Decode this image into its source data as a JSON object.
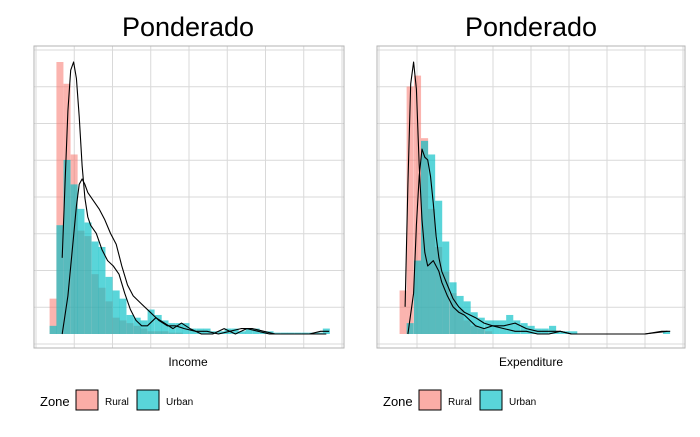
{
  "colors": {
    "rural": "#F8766D",
    "urban": "#00BFC4",
    "grid": "#D9D9D9",
    "frame": "#B3B3B3",
    "curve": "#000000"
  },
  "chart_data": [
    {
      "type": "area",
      "title": "Ponderado",
      "xlabel": "Income",
      "ylabel": "",
      "xlim": [
        0,
        1
      ],
      "ylim": [
        0,
        1
      ],
      "grid": true,
      "legend": {
        "title": "Zone",
        "position": "bottom-left",
        "entries": [
          "Rural",
          "Urban"
        ]
      },
      "series": [
        {
          "name": "Rural",
          "histogram": {
            "bin_width": 0.0247,
            "x": [
              0.018,
              0.042,
              0.067,
              0.092,
              0.116,
              0.141,
              0.166,
              0.19,
              0.215,
              0.24,
              0.264,
              0.289,
              0.314,
              0.338,
              0.363,
              0.388,
              0.412,
              0.437,
              0.462
            ],
            "values": [
              0.13,
              1.0,
              0.92,
              0.66,
              0.38,
              0.36,
              0.22,
              0.17,
              0.12,
              0.06,
              0.05,
              0.04,
              0.03,
              0.02,
              0.01,
              0.01,
              0.01,
              0.005,
              0.005
            ]
          },
          "density": {
            "x": [
              0.05,
              0.06,
              0.07,
              0.08,
              0.09,
              0.1,
              0.11,
              0.12,
              0.13,
              0.14,
              0.15,
              0.17,
              0.19,
              0.21,
              0.23,
              0.25,
              0.27,
              0.29,
              0.31,
              0.33,
              0.35,
              0.38,
              0.41,
              0.44,
              0.47,
              0.5,
              0.54,
              0.58,
              0.62,
              0.66,
              0.7,
              0.74,
              0.78,
              0.82,
              0.86,
              0.9,
              0.94,
              0.98
            ],
            "values": [
              0.28,
              0.55,
              0.82,
              0.97,
              1.0,
              0.94,
              0.8,
              0.62,
              0.5,
              0.43,
              0.4,
              0.37,
              0.31,
              0.27,
              0.25,
              0.22,
              0.15,
              0.09,
              0.05,
              0.03,
              0.03,
              0.06,
              0.04,
              0.02,
              0.04,
              0.02,
              0.0,
              0.0,
              0.02,
              0.0,
              0.02,
              0.01,
              0.0,
              0.0,
              0.0,
              0.0,
              0.0,
              0.0
            ]
          }
        },
        {
          "name": "Urban",
          "histogram": {
            "bin_width": 0.0247,
            "x": [
              0.018,
              0.042,
              0.067,
              0.092,
              0.116,
              0.141,
              0.166,
              0.19,
              0.215,
              0.24,
              0.264,
              0.289,
              0.314,
              0.338,
              0.363,
              0.388,
              0.412,
              0.437,
              0.462,
              0.486,
              0.511,
              0.536,
              0.56,
              0.585,
              0.61,
              0.634,
              0.659,
              0.684,
              0.708,
              0.733,
              0.758,
              0.782,
              0.807,
              0.832,
              0.856,
              0.881,
              0.906,
              0.931,
              0.955,
              0.98
            ],
            "values": [
              0.03,
              0.4,
              0.64,
              0.55,
              0.46,
              0.41,
              0.34,
              0.32,
              0.21,
              0.16,
              0.13,
              0.07,
              0.06,
              0.05,
              0.09,
              0.07,
              0.05,
              0.04,
              0.04,
              0.04,
              0.02,
              0.02,
              0.02,
              0.01,
              0.01,
              0.02,
              0.02,
              0.01,
              0.02,
              0.02,
              0.01,
              0.01,
              0.005,
              0.005,
              0.005,
              0.005,
              0.005,
              0.005,
              0.005,
              0.02
            ]
          },
          "density": {
            "x": [
              0.05,
              0.07,
              0.09,
              0.1,
              0.11,
              0.12,
              0.13,
              0.14,
              0.16,
              0.18,
              0.2,
              0.22,
              0.24,
              0.26,
              0.28,
              0.3,
              0.33,
              0.36,
              0.39,
              0.42,
              0.45,
              0.48,
              0.52,
              0.56,
              0.6,
              0.64,
              0.68,
              0.72,
              0.76,
              0.8,
              0.84,
              0.88,
              0.92,
              0.96,
              0.99
            ],
            "values": [
              0.0,
              0.14,
              0.36,
              0.47,
              0.55,
              0.57,
              0.55,
              0.52,
              0.49,
              0.46,
              0.42,
              0.37,
              0.33,
              0.25,
              0.18,
              0.14,
              0.11,
              0.08,
              0.05,
              0.03,
              0.03,
              0.02,
              0.01,
              0.01,
              0.0,
              0.01,
              0.02,
              0.02,
              0.01,
              0.0,
              0.0,
              0.0,
              0.0,
              0.01,
              0.01
            ]
          }
        }
      ]
    },
    {
      "type": "area",
      "title": "Ponderado",
      "xlabel": "Expenditure",
      "ylabel": "",
      "xlim": [
        0,
        1
      ],
      "ylim": [
        0,
        1
      ],
      "grid": true,
      "legend": {
        "title": "Zone",
        "position": "bottom-left",
        "entries": [
          "Rural",
          "Urban"
        ]
      },
      "series": [
        {
          "name": "Rural",
          "histogram": {
            "bin_width": 0.0252,
            "x": [
              0.043,
              0.068,
              0.094,
              0.119,
              0.144,
              0.169,
              0.194,
              0.22,
              0.245,
              0.27,
              0.295,
              0.32,
              0.346
            ],
            "values": [
              0.16,
              0.91,
              0.95,
              0.72,
              0.46,
              0.32,
              0.23,
              0.15,
              0.09,
              0.05,
              0.03,
              0.02,
              0.01
            ]
          },
          "density": {
            "x": [
              0.05,
              0.06,
              0.07,
              0.08,
              0.09,
              0.1,
              0.11,
              0.12,
              0.13,
              0.14,
              0.15,
              0.16,
              0.17,
              0.18,
              0.2,
              0.22,
              0.24,
              0.26,
              0.28,
              0.3,
              0.33,
              0.36,
              0.4,
              0.44,
              0.48,
              0.52,
              0.56,
              0.6,
              0.64,
              0.7,
              0.8,
              0.9,
              0.98
            ],
            "values": [
              0.1,
              0.55,
              0.92,
              1.0,
              0.9,
              0.62,
              0.42,
              0.3,
              0.25,
              0.26,
              0.27,
              0.25,
              0.23,
              0.19,
              0.14,
              0.1,
              0.08,
              0.07,
              0.05,
              0.03,
              0.02,
              0.03,
              0.02,
              0.01,
              0.01,
              0.0,
              0.0,
              0.01,
              0.0,
              0.0,
              0.0,
              0.0,
              0.01
            ]
          }
        },
        {
          "name": "Urban",
          "histogram": {
            "bin_width": 0.0252,
            "x": [
              0.068,
              0.094,
              0.119,
              0.144,
              0.169,
              0.194,
              0.22,
              0.245,
              0.27,
              0.295,
              0.32,
              0.346,
              0.371,
              0.396,
              0.421,
              0.446,
              0.472,
              0.497,
              0.522,
              0.547,
              0.573,
              0.598,
              0.623,
              0.648,
              0.674,
              0.699,
              0.724,
              0.749,
              0.775,
              0.8,
              0.825,
              0.85,
              0.876,
              0.901,
              0.926,
              0.951,
              0.977
            ],
            "values": [
              0.04,
              0.27,
              0.71,
              0.66,
              0.49,
              0.34,
              0.19,
              0.14,
              0.12,
              0.08,
              0.06,
              0.05,
              0.05,
              0.05,
              0.07,
              0.05,
              0.04,
              0.03,
              0.02,
              0.02,
              0.03,
              0.01,
              0.01,
              0.01,
              0.0,
              0.0,
              0.0,
              0.0,
              0.0,
              0.0,
              0.0,
              0.0,
              0.0,
              0.0,
              0.0,
              0.0,
              0.01
            ]
          },
          "density": {
            "x": [
              0.06,
              0.08,
              0.09,
              0.1,
              0.11,
              0.12,
              0.13,
              0.14,
              0.15,
              0.16,
              0.17,
              0.18,
              0.2,
              0.22,
              0.24,
              0.26,
              0.28,
              0.3,
              0.33,
              0.36,
              0.4,
              0.44,
              0.48,
              0.52,
              0.56,
              0.6,
              0.64,
              0.7,
              0.8,
              0.9,
              0.96,
              0.99
            ],
            "values": [
              0.0,
              0.15,
              0.4,
              0.58,
              0.68,
              0.65,
              0.64,
              0.58,
              0.48,
              0.36,
              0.28,
              0.23,
              0.18,
              0.13,
              0.1,
              0.08,
              0.07,
              0.06,
              0.04,
              0.03,
              0.03,
              0.04,
              0.02,
              0.01,
              0.01,
              0.01,
              0.0,
              0.0,
              0.0,
              0.0,
              0.01,
              0.01
            ]
          }
        }
      ]
    }
  ]
}
